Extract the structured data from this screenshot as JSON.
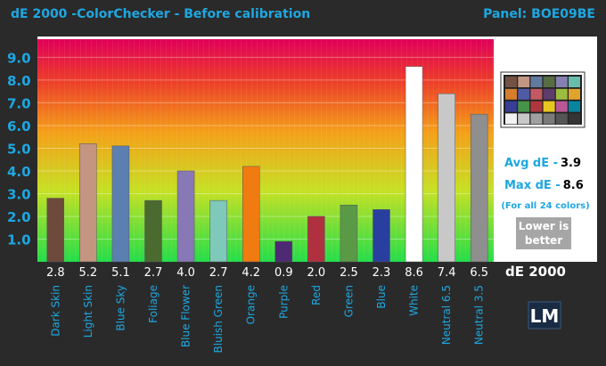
{
  "header": {
    "title": "dE 2000 -ColorChecker  - Before calibration",
    "panel": "Panel: BOE09BE"
  },
  "stats": {
    "avg_label": "Avg dE -",
    "avg_value": "3.9",
    "max_label": "Max dE -",
    "max_value": "8.6",
    "note": "(For all 24 colors)",
    "lower_line1": "Lower is",
    "lower_line2": "better",
    "metric_label": "dE 2000"
  },
  "logo": {
    "text": "LM"
  },
  "colors": {
    "title": "#1ea7e1",
    "stats": "#1ea7e1",
    "background": "#2a2a2a",
    "badge": "#a6a6a6"
  },
  "chart_data": {
    "type": "bar",
    "title": "dE 2000 -ColorChecker  - Before calibration",
    "xlabel": "",
    "ylabel": "",
    "ylim": [
      0,
      9.8
    ],
    "yticks": [
      "1.0",
      "2.0",
      "3.0",
      "4.0",
      "5.0",
      "6.0",
      "7.0",
      "8.0",
      "9.0"
    ],
    "categories": [
      "Dark Skin",
      "Light Skin",
      "Blue Sky",
      "Foliage",
      "Blue Flower",
      "Bluish Green",
      "Orange",
      "Purple",
      "Red",
      "Green",
      "Blue",
      "White",
      "Neutral 6.5",
      "Neutral 3.5"
    ],
    "values": [
      2.8,
      5.2,
      5.1,
      2.7,
      4.0,
      2.7,
      4.2,
      0.9,
      2.0,
      2.5,
      2.3,
      8.6,
      7.4,
      6.5
    ],
    "value_labels": [
      "2.8",
      "5.2",
      "5.1",
      "2.7",
      "4.0",
      "2.7",
      "4.2",
      "0.9",
      "2.0",
      "2.5",
      "2.3",
      "8.6",
      "7.4",
      "6.5"
    ],
    "bar_colors": [
      "#6e4a3c",
      "#c49580",
      "#5b7fb1",
      "#4a6a2f",
      "#8878b6",
      "#7ec9b9",
      "#f07b10",
      "#4e2a74",
      "#b13040",
      "#5a9a47",
      "#283fa0",
      "#ffffff",
      "#c8c8c8",
      "#8f8f8f"
    ]
  },
  "checker_colors": [
    "#735244",
    "#c29682",
    "#627a9d",
    "#576c43",
    "#8580b1",
    "#67bdaa",
    "#d67e2c",
    "#505ba6",
    "#c15a63",
    "#5e3c6c",
    "#9dbc40",
    "#e0a32e",
    "#383d96",
    "#469449",
    "#af363c",
    "#e7c71f",
    "#bb5695",
    "#0885a1",
    "#f3f3f2",
    "#c8c8c8",
    "#a0a0a0",
    "#7a7a79",
    "#555555",
    "#343434"
  ]
}
